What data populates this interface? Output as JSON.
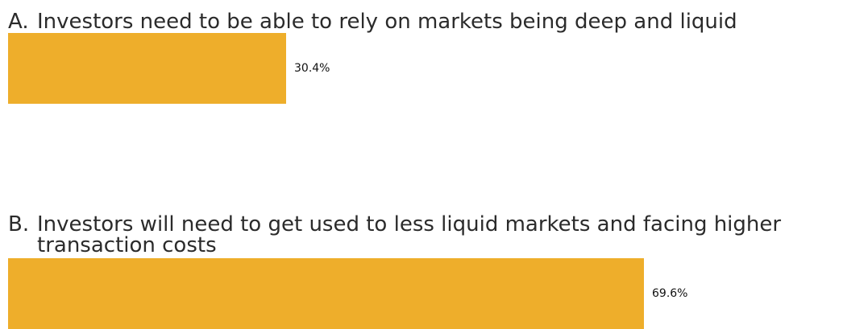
{
  "chart_data": {
    "type": "bar",
    "orientation": "horizontal",
    "categories": [
      "Investors need to be able to rely on markets being deep and liquid",
      "Investors will need to get used to less liquid markets and facing higher transaction costs"
    ],
    "letters": [
      "A.",
      "B."
    ],
    "values": [
      30.4,
      69.6
    ],
    "value_labels": [
      "30.4%",
      "69.6%"
    ],
    "unit": "%",
    "xlim": [
      0,
      70
    ],
    "grid": false,
    "bar_color": "#eeae2b"
  }
}
